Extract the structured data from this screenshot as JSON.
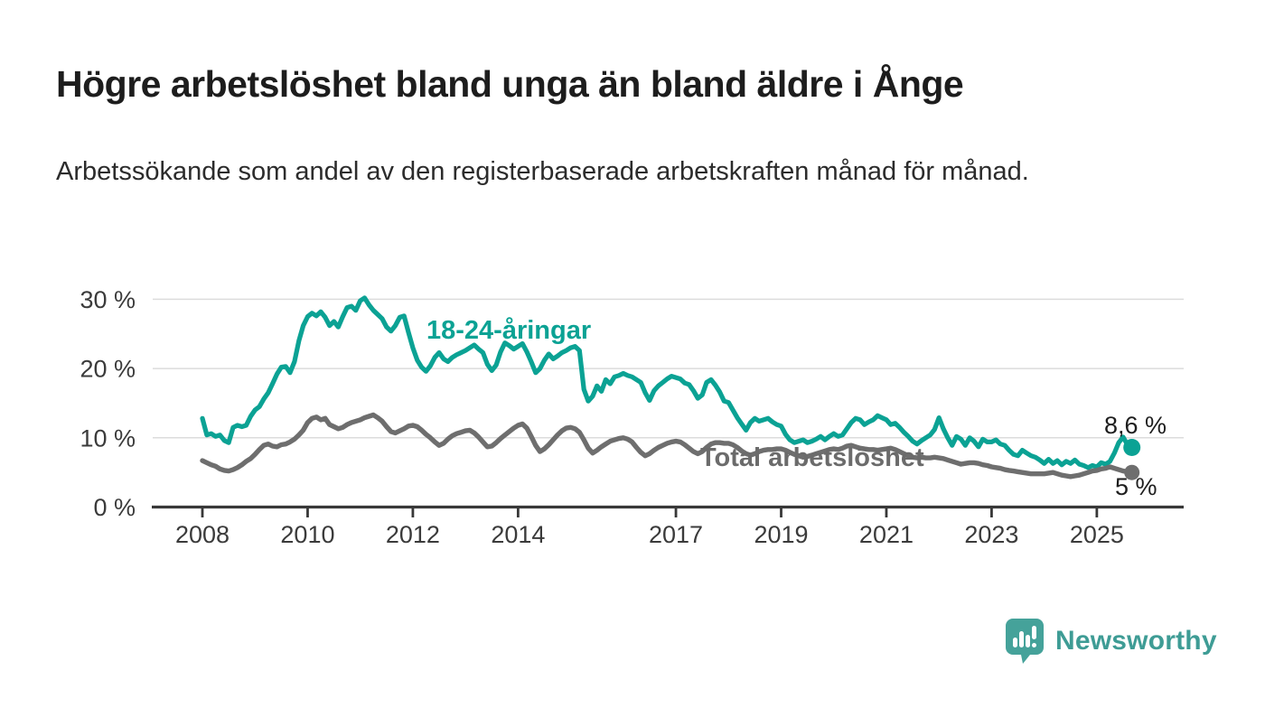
{
  "header": {
    "title": "Högre arbetslöshet bland unga än bland äldre i Ånge",
    "subtitle": "Arbetssökande som andel av den registerbaserade arbetskraften månad för månad."
  },
  "chart_data": {
    "type": "line",
    "unit": "%",
    "frequency": "monthly",
    "x_start": "2008-01",
    "x_end": "2025-09",
    "ylim": [
      0,
      32
    ],
    "grid": "horizontal",
    "axis_color": "#383838",
    "grid_color": "#dcdcdc",
    "y_ticks": [
      {
        "label": "30 %",
        "value": 30
      },
      {
        "label": "20 %",
        "value": 20
      },
      {
        "label": "10 %",
        "value": 10
      },
      {
        "label": "0 %",
        "value": 0
      }
    ],
    "x_ticks": [
      {
        "label": "2008",
        "year": 2008
      },
      {
        "label": "2010",
        "year": 2010
      },
      {
        "label": "2012",
        "year": 2012
      },
      {
        "label": "2014",
        "year": 2014
      },
      {
        "label": "2017",
        "year": 2017
      },
      {
        "label": "2019",
        "year": 2019
      },
      {
        "label": "2021",
        "year": 2021
      },
      {
        "label": "2023",
        "year": 2023
      },
      {
        "label": "2025",
        "year": 2025
      }
    ],
    "series": [
      {
        "name": "18-24-åringar",
        "color": "#0ba294",
        "end_label": "8,6 %",
        "end_value": 8.6,
        "values": [
          12.8,
          10.4,
          10.6,
          10.2,
          10.4,
          9.6,
          9.3,
          11.5,
          11.8,
          11.6,
          11.8,
          13.1,
          14.0,
          14.5,
          15.6,
          16.5,
          17.8,
          19.2,
          20.2,
          20.3,
          19.4,
          21.0,
          24.0,
          26.2,
          27.5,
          28.0,
          27.6,
          28.2,
          27.4,
          26.2,
          26.8,
          26.0,
          27.5,
          28.8,
          29.0,
          28.4,
          29.8,
          30.2,
          29.2,
          28.4,
          27.8,
          27.2,
          26.0,
          25.4,
          26.2,
          27.4,
          27.6,
          25.2,
          23.0,
          21.2,
          20.2,
          19.6,
          20.4,
          21.6,
          22.3,
          21.4,
          21.0,
          21.6,
          22.0,
          22.3,
          22.6,
          23.0,
          23.4,
          22.8,
          22.3,
          20.6,
          19.7,
          20.5,
          22.4,
          23.7,
          23.3,
          22.8,
          23.2,
          23.6,
          22.4,
          21.0,
          19.4,
          20.0,
          21.2,
          22.1,
          21.4,
          21.8,
          22.3,
          22.6,
          23.0,
          23.2,
          22.6,
          17.0,
          15.3,
          16.0,
          17.5,
          16.7,
          18.4,
          17.8,
          18.8,
          19.0,
          19.3,
          19.0,
          18.8,
          18.4,
          18.0,
          16.5,
          15.4,
          16.8,
          17.5,
          18.0,
          18.5,
          18.9,
          18.7,
          18.5,
          17.9,
          17.7,
          16.8,
          15.7,
          16.2,
          18.0,
          18.4,
          17.6,
          16.6,
          15.3,
          15.1,
          14.0,
          12.9,
          12.0,
          11.1,
          12.2,
          12.8,
          12.4,
          12.6,
          12.8,
          12.3,
          11.9,
          11.7,
          10.5,
          9.7,
          9.3,
          9.5,
          9.7,
          9.3,
          9.5,
          9.8,
          10.2,
          9.7,
          10.2,
          10.6,
          10.2,
          10.4,
          11.3,
          12.2,
          12.8,
          12.6,
          11.9,
          12.3,
          12.6,
          13.2,
          12.9,
          12.6,
          11.9,
          12.1,
          11.5,
          10.8,
          10.2,
          9.5,
          9.1,
          9.6,
          10.0,
          10.4,
          11.2,
          12.9,
          11.3,
          10.0,
          8.9,
          10.2,
          9.8,
          8.9,
          10.0,
          9.5,
          8.7,
          9.8,
          9.4,
          9.4,
          9.7,
          9.1,
          8.9,
          8.2,
          7.6,
          7.4,
          8.2,
          7.8,
          7.4,
          7.2,
          6.8,
          6.3,
          6.9,
          6.3,
          6.7,
          6.1,
          6.6,
          6.3,
          6.8,
          6.2,
          6.0,
          5.7,
          6.0,
          5.8,
          6.4,
          6.2,
          6.6,
          7.8,
          9.3,
          10.1,
          9.0,
          8.6
        ]
      },
      {
        "name": "Total arbetslöshet",
        "color": "#6e6e6e",
        "end_label": "5 %",
        "end_value": 5.0,
        "values": [
          6.7,
          6.4,
          6.1,
          5.9,
          5.5,
          5.3,
          5.2,
          5.4,
          5.7,
          6.1,
          6.6,
          7.0,
          7.6,
          8.3,
          8.9,
          9.1,
          8.8,
          8.7,
          9.0,
          9.1,
          9.4,
          9.8,
          10.4,
          11.1,
          12.2,
          12.8,
          13.0,
          12.6,
          12.8,
          11.9,
          11.6,
          11.3,
          11.5,
          11.9,
          12.2,
          12.4,
          12.6,
          12.9,
          13.1,
          13.3,
          12.9,
          12.4,
          11.6,
          10.9,
          10.7,
          11.0,
          11.3,
          11.7,
          11.8,
          11.6,
          11.1,
          10.5,
          10.0,
          9.4,
          8.9,
          9.2,
          9.8,
          10.3,
          10.6,
          10.8,
          11.0,
          11.1,
          10.7,
          10.1,
          9.4,
          8.7,
          8.8,
          9.3,
          9.9,
          10.4,
          10.9,
          11.4,
          11.8,
          12.0,
          11.4,
          10.2,
          8.9,
          8.0,
          8.4,
          9.0,
          9.7,
          10.4,
          11.0,
          11.4,
          11.5,
          11.3,
          10.8,
          9.7,
          8.5,
          7.8,
          8.2,
          8.7,
          9.1,
          9.5,
          9.7,
          9.9,
          10.0,
          9.8,
          9.4,
          8.6,
          7.9,
          7.4,
          7.7,
          8.2,
          8.6,
          8.9,
          9.2,
          9.4,
          9.5,
          9.4,
          9.0,
          8.5,
          8.0,
          7.7,
          8.0,
          8.6,
          9.1,
          9.3,
          9.3,
          9.2,
          9.2,
          9.0,
          8.6,
          8.1,
          7.7,
          7.5,
          7.7,
          8.0,
          8.2,
          8.3,
          8.3,
          8.4,
          8.4,
          8.2,
          7.9,
          7.6,
          7.4,
          7.2,
          7.3,
          7.5,
          7.7,
          7.9,
          8.1,
          8.3,
          8.4,
          8.3,
          8.5,
          8.8,
          8.9,
          8.7,
          8.5,
          8.4,
          8.3,
          8.3,
          8.2,
          8.3,
          8.4,
          8.5,
          8.3,
          8.0,
          7.7,
          7.4,
          7.2,
          7.1,
          7.2,
          7.1,
          7.1,
          7.2,
          7.1,
          7.0,
          6.8,
          6.6,
          6.4,
          6.2,
          6.3,
          6.4,
          6.4,
          6.3,
          6.1,
          6.0,
          5.8,
          5.7,
          5.6,
          5.4,
          5.3,
          5.2,
          5.1,
          5.0,
          4.9,
          4.8,
          4.8,
          4.8,
          4.8,
          4.9,
          5.0,
          4.8,
          4.6,
          4.5,
          4.4,
          4.5,
          4.6,
          4.8,
          5.0,
          5.2,
          5.3,
          5.5,
          5.6,
          5.8,
          5.6,
          5.4,
          5.2,
          5.1,
          5.0
        ]
      }
    ]
  },
  "footer": {
    "brand": "Newsworthy",
    "logo_color": "#45a29a",
    "brand_text_color": "#3e9c95"
  }
}
